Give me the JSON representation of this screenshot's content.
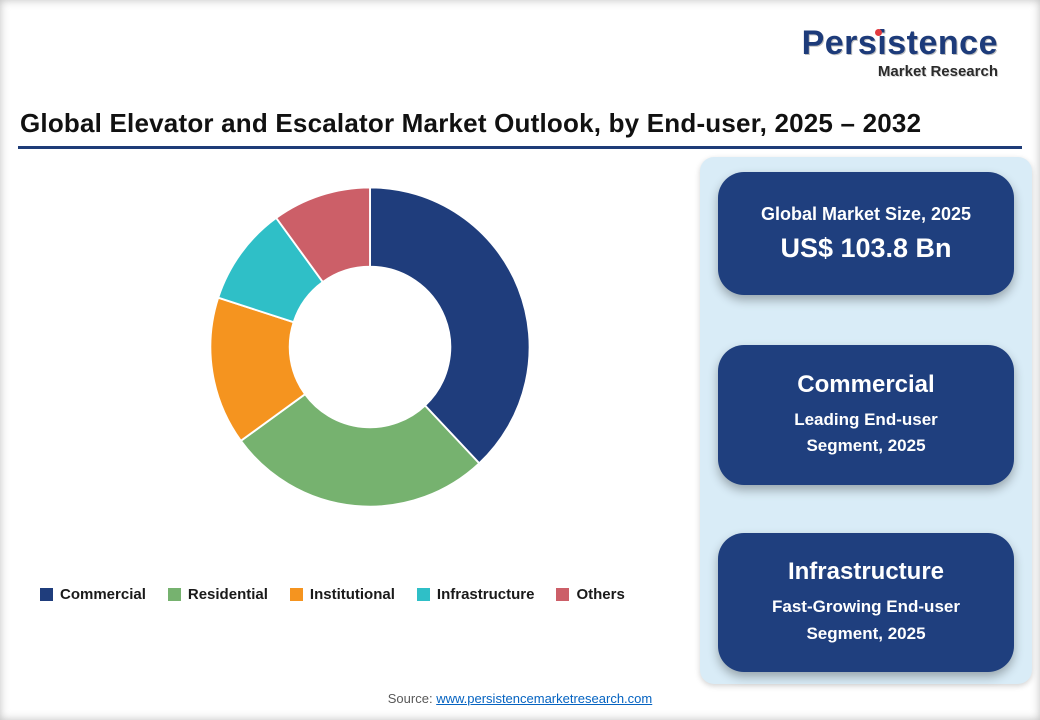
{
  "logo": {
    "title": "Persistence",
    "subtitle": "Market Research"
  },
  "header": {
    "title": "Global Elevator and Escalator Market Outlook, by End-user, 2025 – 2032"
  },
  "chart_data": {
    "type": "pie",
    "donut": true,
    "title": "Global Elevator and Escalator Market Outlook, by End-user, 2025 – 2032",
    "categories": [
      "Commercial",
      "Residential",
      "Institutional",
      "Infrastructure",
      "Others"
    ],
    "values": [
      38,
      27,
      15,
      10,
      10
    ],
    "colors": [
      "#1F3D7C",
      "#76B26F",
      "#F5941F",
      "#2FBFC7",
      "#CC5F68"
    ],
    "legend_position": "bottom",
    "inner_radius_ratio": 0.5,
    "start_angle_deg": 0,
    "direction": "clockwise"
  },
  "stats_panel": {
    "cards": [
      {
        "title": "Global Market Size, 2025",
        "value": "US$ 103.8 Bn"
      },
      {
        "title": "Commercial",
        "subtitle": "Leading End-user Segment, 2025"
      },
      {
        "title": "Infrastructure",
        "subtitle": "Fast-Growing End-user Segment, 2025"
      }
    ]
  },
  "footer": {
    "source_label": "Source:",
    "source_link": "www.persistencemarketresearch.com"
  }
}
